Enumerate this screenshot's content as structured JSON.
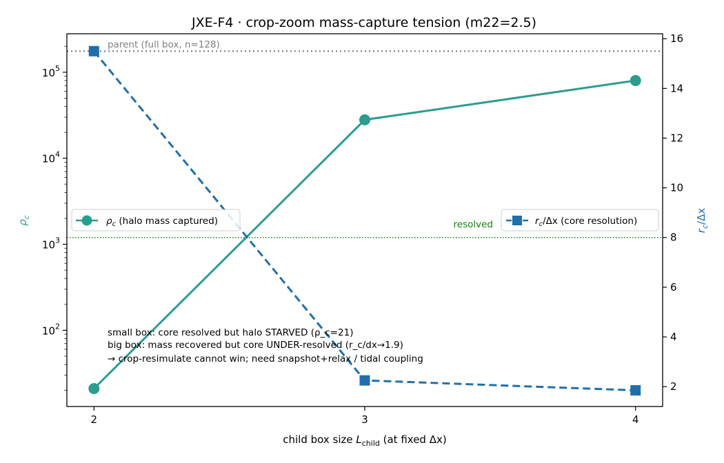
{
  "chart_data": {
    "type": "line",
    "title": "JXE-F4 · crop-zoom mass-capture tension (m22=2.5)",
    "xlabel_main": "child box size ",
    "xlabel_var": "L",
    "xlabel_sub": "child",
    "xlabel_tail": " (at fixed Δx)",
    "ylabel_left": "ρ",
    "ylabel_left_sub": "c",
    "ylabel_right_a": "r",
    "ylabel_right_sub": "c",
    "ylabel_right_b": "/Δx",
    "x": [
      2,
      3,
      4
    ],
    "xticks": [
      "2",
      "3",
      "4"
    ],
    "xlim": [
      1.9,
      4.1
    ],
    "left_axis": {
      "scale": "log",
      "ylim": [
        13,
        280000
      ],
      "ticks": [
        {
          "base": "10",
          "exp": "2",
          "value": 100
        },
        {
          "base": "10",
          "exp": "3",
          "value": 1000
        },
        {
          "base": "10",
          "exp": "4",
          "value": 10000
        },
        {
          "base": "10",
          "exp": "5",
          "value": 100000
        }
      ]
    },
    "right_axis": {
      "scale": "linear",
      "ylim": [
        1.2,
        16.2
      ],
      "ticks": [
        "2",
        "4",
        "6",
        "8",
        "10",
        "12",
        "14",
        "16"
      ]
    },
    "series": [
      {
        "name_main": "ρ",
        "name_sub": "c",
        "name_tail": " (halo mass captured)",
        "axis": "left",
        "values": [
          21,
          28000,
          80000
        ],
        "color": "#2a9d8f",
        "marker": "circle",
        "linestyle": "solid"
      },
      {
        "name_main": "r",
        "name_sub": "c",
        "name_mid": "/Δx",
        "name_tail": " (core resolution)",
        "axis": "right",
        "values": [
          15.5,
          2.25,
          1.85
        ],
        "color": "#1f6fad",
        "marker": "square",
        "linestyle": "dashed"
      }
    ],
    "reference_lines": [
      {
        "label": "parent (full box, n=128)",
        "axis": "right",
        "value": 15.5,
        "color": "#808080",
        "style": "dotted"
      },
      {
        "label": "resolved",
        "axis": "right",
        "value": 8,
        "color": "#108010",
        "style": "dotted"
      }
    ],
    "annotations": [
      "small box: core resolved but halo STARVED (ρ_c=21)",
      "big box: mass recovered but core UNDER-resolved (r_c/dx→1.9)",
      "→ crop-resimulate cannot win; need snapshot+relax / tidal coupling"
    ],
    "legend_placement": [
      "center-left",
      "center-right"
    ],
    "grid": false
  }
}
